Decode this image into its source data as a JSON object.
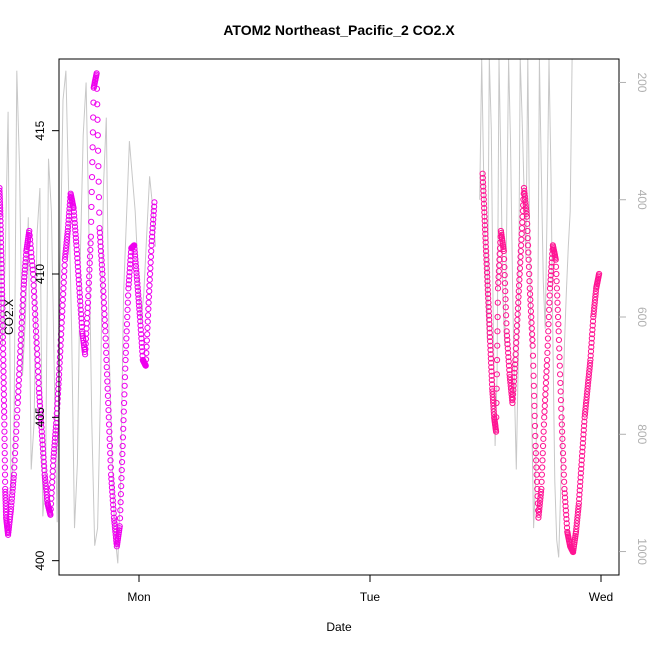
{
  "chart_data": {
    "type": "scatter",
    "title": "ATOM2 Northeast_Pacific_2 CO2.X",
    "xlabel": "Date",
    "ylabel": "CO2.X",
    "x_ticks": [
      "Mon",
      "Tue",
      "Wed"
    ],
    "y_ticks": [
      400,
      405,
      410,
      415
    ],
    "ylim": [
      399.5,
      417.5
    ],
    "y2_ticks": [
      200,
      400,
      600,
      800,
      1000
    ],
    "y2lim": [
      1040,
      160
    ],
    "y2_reversed": true,
    "grid": false,
    "legend": "none",
    "colors": {
      "series_1": "#ee00ee",
      "series_2": "#ff1493",
      "pressure_trace": "#c8c8c8",
      "right_axis": "#b0b0b0"
    },
    "series": [
      {
        "x_unit": "hours from Mon 00:00",
        "points": [
          [
            -14.5,
            413.0
          ],
          [
            -14.4,
            412.0
          ],
          [
            -14.3,
            410.5
          ],
          [
            -14.2,
            409.0
          ],
          [
            -14.1,
            407.0
          ],
          [
            -14.0,
            405.0
          ],
          [
            -13.9,
            402.5
          ],
          [
            -13.8,
            401.5
          ],
          [
            -13.6,
            400.9
          ],
          [
            -13.3,
            401.8
          ],
          [
            -13.0,
            403.0
          ],
          [
            -12.6,
            405.5
          ],
          [
            -12.3,
            407.5
          ],
          [
            -12.0,
            409.5
          ],
          [
            -11.7,
            410.8
          ],
          [
            -11.4,
            411.5
          ],
          [
            -11.0,
            410.0
          ],
          [
            -10.7,
            408.0
          ],
          [
            -10.4,
            406.0
          ],
          [
            -10.1,
            404.5
          ],
          [
            -9.8,
            403.0
          ],
          [
            -9.5,
            402.0
          ],
          [
            -9.2,
            401.6
          ],
          [
            -8.9,
            403.5
          ],
          [
            -8.6,
            404.8
          ],
          [
            -8.3,
            406.5
          ],
          [
            -8.0,
            408.5
          ],
          [
            -7.7,
            410.5
          ],
          [
            -7.4,
            411.5
          ],
          [
            -7.1,
            412.8
          ],
          [
            -6.8,
            412.3
          ],
          [
            -6.5,
            411.0
          ],
          [
            -6.2,
            409.5
          ],
          [
            -5.9,
            408.0
          ],
          [
            -5.6,
            407.2
          ],
          [
            -5.3,
            409.0
          ],
          [
            -5.0,
            411.3
          ],
          [
            -4.7,
            416.5
          ],
          [
            -4.4,
            417.0
          ],
          [
            -4.1,
            411.6
          ],
          [
            -3.8,
            410.0
          ],
          [
            -3.5,
            408.0
          ],
          [
            -3.2,
            405.5
          ],
          [
            -2.9,
            403.0
          ],
          [
            -2.6,
            401.5
          ],
          [
            -2.3,
            400.5
          ],
          [
            -2.0,
            401.2
          ],
          [
            -1.7,
            404.0
          ],
          [
            -1.4,
            407.0
          ],
          [
            -1.1,
            409.5
          ],
          [
            -0.8,
            410.9
          ],
          [
            -0.5,
            411.0
          ],
          [
            -0.2,
            409.8
          ],
          [
            0.1,
            408.5
          ],
          [
            0.4,
            407.0
          ],
          [
            0.7,
            406.8
          ],
          [
            1.0,
            409.0
          ],
          [
            1.3,
            411.0
          ],
          [
            1.6,
            412.5
          ]
        ]
      },
      {
        "x_unit": "hours from Mon 00:00",
        "points": [
          [
            35.7,
            413.5
          ],
          [
            35.9,
            412.0
          ],
          [
            36.1,
            410.5
          ],
          [
            36.3,
            409.0
          ],
          [
            36.5,
            407.5
          ],
          [
            36.7,
            406.0
          ],
          [
            36.9,
            405.0
          ],
          [
            37.1,
            404.5
          ],
          [
            37.3,
            409.5
          ],
          [
            37.6,
            411.5
          ],
          [
            37.9,
            410.8
          ],
          [
            38.2,
            408.0
          ],
          [
            38.5,
            406.5
          ],
          [
            38.8,
            405.5
          ],
          [
            39.1,
            407.0
          ],
          [
            39.4,
            409.0
          ],
          [
            39.7,
            411.0
          ],
          [
            40.0,
            413.0
          ],
          [
            40.3,
            412.0
          ],
          [
            40.6,
            409.5
          ],
          [
            40.9,
            407.5
          ],
          [
            41.2,
            404.0
          ],
          [
            41.5,
            401.5
          ],
          [
            41.8,
            402.5
          ],
          [
            42.1,
            405.0
          ],
          [
            42.4,
            407.0
          ],
          [
            42.7,
            409.5
          ],
          [
            43.0,
            411.0
          ],
          [
            43.3,
            410.5
          ],
          [
            43.6,
            408.0
          ],
          [
            43.9,
            405.0
          ],
          [
            44.2,
            402.5
          ],
          [
            44.5,
            401.0
          ],
          [
            44.8,
            400.5
          ],
          [
            45.1,
            400.3
          ],
          [
            45.4,
            401.0
          ],
          [
            45.7,
            402.0
          ],
          [
            46.0,
            403.5
          ],
          [
            46.3,
            405.0
          ],
          [
            46.6,
            406.0
          ],
          [
            46.9,
            407.0
          ],
          [
            47.2,
            408.5
          ],
          [
            47.5,
            409.5
          ],
          [
            47.8,
            410.0
          ]
        ]
      }
    ],
    "pressure_trace": [
      [
        -14.8,
        750
      ],
      [
        -14.5,
        400
      ],
      [
        -14.2,
        650
      ],
      [
        -13.9,
        500
      ],
      [
        -13.6,
        250
      ],
      [
        -13.3,
        900
      ],
      [
        -13.0,
        820
      ],
      [
        -12.7,
        180
      ],
      [
        -12.4,
        350
      ],
      [
        -12.1,
        700
      ],
      [
        -11.8,
        600
      ],
      [
        -11.5,
        430
      ],
      [
        -11.2,
        860
      ],
      [
        -10.9,
        780
      ],
      [
        -10.6,
        460
      ],
      [
        -10.3,
        380
      ],
      [
        -10.0,
        940
      ],
      [
        -9.7,
        870
      ],
      [
        -9.4,
        330
      ],
      [
        -9.1,
        420
      ],
      [
        -8.8,
        700
      ],
      [
        -8.5,
        950
      ],
      [
        -8.2,
        520
      ],
      [
        -7.9,
        230
      ],
      [
        -7.6,
        180
      ],
      [
        -7.3,
        390
      ],
      [
        -7.0,
        620
      ],
      [
        -6.7,
        960
      ],
      [
        -6.4,
        850
      ],
      [
        -6.1,
        500
      ],
      [
        -5.8,
        290
      ],
      [
        -5.5,
        200
      ],
      [
        -5.2,
        450
      ],
      [
        -4.9,
        780
      ],
      [
        -4.6,
        990
      ],
      [
        -4.3,
        960
      ],
      [
        -4.0,
        730
      ],
      [
        -3.7,
        380
      ],
      [
        -3.4,
        260
      ],
      [
        -3.1,
        660
      ],
      [
        -2.8,
        840
      ],
      [
        -2.5,
        970
      ],
      [
        -2.2,
        1020
      ],
      [
        -1.9,
        880
      ],
      [
        -1.6,
        560
      ],
      [
        -1.3,
        430
      ],
      [
        -1.0,
        300
      ],
      [
        -0.7,
        360
      ],
      [
        -0.4,
        420
      ],
      [
        -0.1,
        520
      ],
      [
        0.2,
        610
      ],
      [
        0.5,
        560
      ],
      [
        0.8,
        460
      ],
      [
        1.1,
        360
      ],
      [
        1.4,
        410
      ],
      [
        1.7,
        480
      ],
      [
        35.4,
        400
      ],
      [
        35.6,
        160
      ],
      [
        35.8,
        350
      ],
      [
        36.0,
        520
      ],
      [
        36.2,
        640
      ],
      [
        36.4,
        160
      ],
      [
        36.6,
        280
      ],
      [
        36.8,
        600
      ],
      [
        37.0,
        820
      ],
      [
        37.2,
        700
      ],
      [
        37.4,
        160
      ],
      [
        37.6,
        340
      ],
      [
        37.8,
        560
      ],
      [
        38.0,
        650
      ],
      [
        38.2,
        440
      ],
      [
        38.4,
        160
      ],
      [
        38.6,
        300
      ],
      [
        38.8,
        540
      ],
      [
        39.0,
        720
      ],
      [
        39.2,
        860
      ],
      [
        39.4,
        680
      ],
      [
        39.6,
        160
      ],
      [
        39.8,
        260
      ],
      [
        40.0,
        380
      ],
      [
        40.2,
        500
      ],
      [
        40.4,
        160
      ],
      [
        40.6,
        480
      ],
      [
        40.8,
        760
      ],
      [
        41.0,
        960
      ],
      [
        41.2,
        880
      ],
      [
        41.4,
        700
      ],
      [
        41.6,
        160
      ],
      [
        41.8,
        350
      ],
      [
        42.0,
        540
      ],
      [
        42.2,
        620
      ],
      [
        42.4,
        420
      ],
      [
        42.6,
        160
      ],
      [
        42.8,
        360
      ],
      [
        43.0,
        640
      ],
      [
        43.2,
        880
      ],
      [
        43.4,
        980
      ],
      [
        43.6,
        1010
      ],
      [
        43.8,
        900
      ],
      [
        44.0,
        780
      ],
      [
        44.2,
        650
      ],
      [
        44.4,
        560
      ],
      [
        44.6,
        480
      ],
      [
        44.8,
        420
      ],
      [
        45.0,
        160
      ]
    ]
  }
}
